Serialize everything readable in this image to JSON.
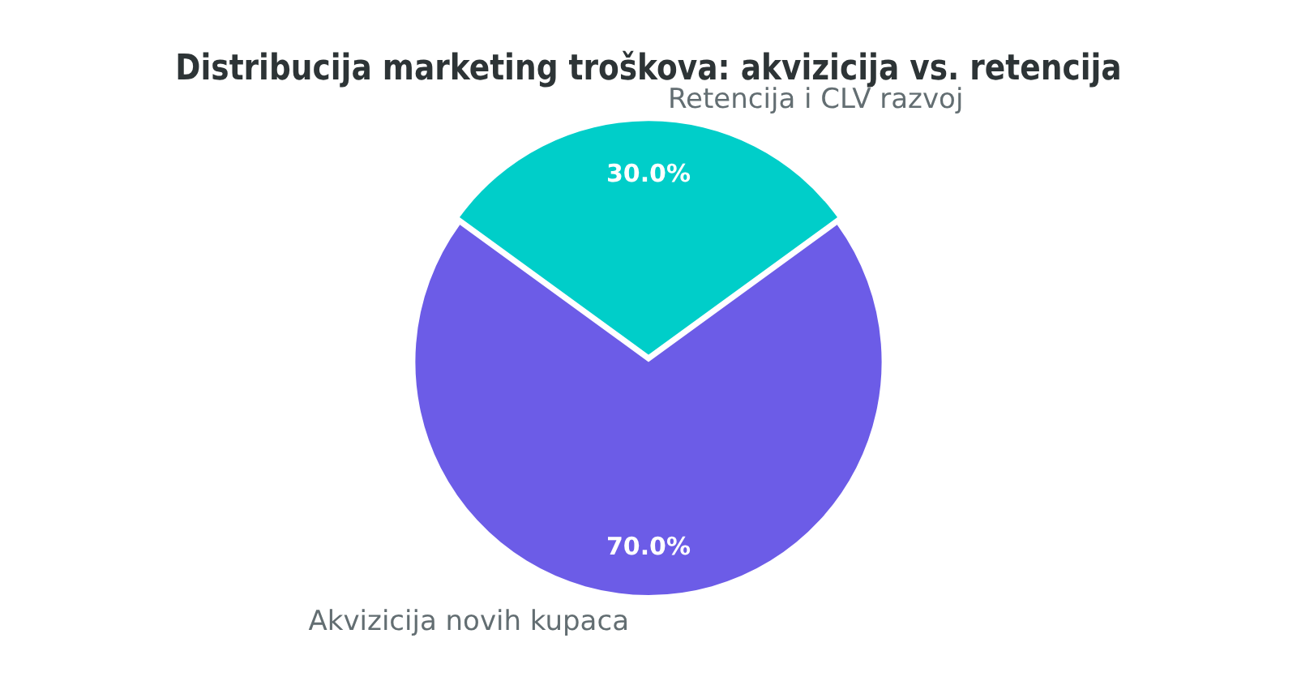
{
  "chart_data": {
    "type": "pie",
    "title": "Distribucija marketing troškova: akvizicija vs. retencija",
    "categories": [
      "Retencija i CLV razvoj",
      "Akvizicija novih kupaca"
    ],
    "values": [
      30,
      70
    ],
    "colors": [
      "#00cec9",
      "#6c5ce7"
    ],
    "value_labels": [
      "30.0%",
      "70.0%"
    ],
    "legend": false
  }
}
